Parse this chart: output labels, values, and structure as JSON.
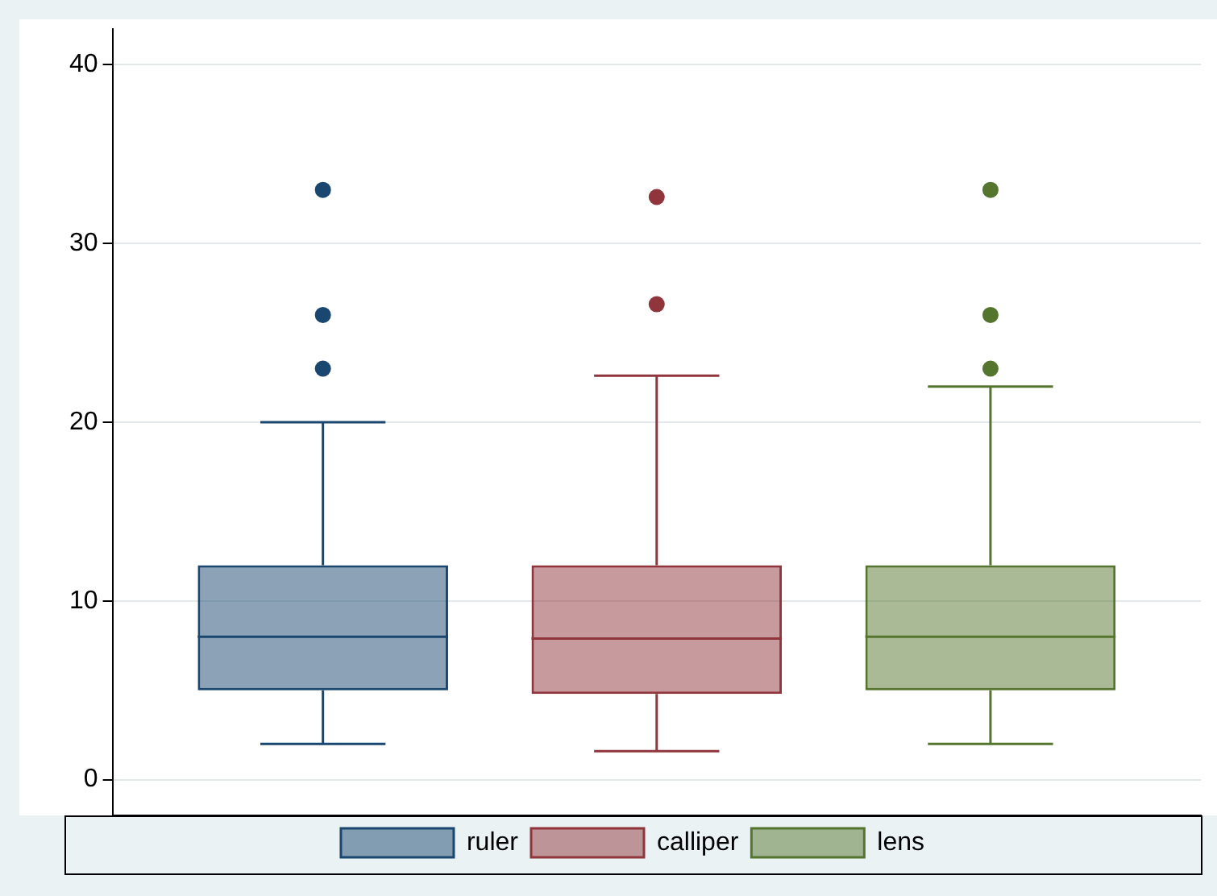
{
  "chart_data": {
    "type": "box",
    "categories": [
      null
    ],
    "series": [
      {
        "name": "ruler",
        "color": "#1a476f",
        "boxes": [
          {
            "low": 2,
            "q1": 5,
            "median": 8,
            "q3": 12,
            "high": 20,
            "outliers": [
              23,
              26,
              33
            ]
          }
        ]
      },
      {
        "name": "calliper",
        "color": "#90353b",
        "boxes": [
          {
            "low": 1.6,
            "q1": 4.8,
            "median": 7.9,
            "q3": 12,
            "high": 22.6,
            "outliers": [
              26.6,
              32.6
            ]
          }
        ]
      },
      {
        "name": "lens",
        "color": "#55752f",
        "boxes": [
          {
            "low": 2,
            "q1": 5,
            "median": 8,
            "q3": 12,
            "high": 22,
            "outliers": [
              23,
              26,
              33
            ]
          }
        ]
      }
    ],
    "ylim": [
      -2,
      42
    ],
    "yticks": [
      0,
      10,
      20,
      30,
      40
    ],
    "grid": "y",
    "legend": "bottom",
    "tick_labels": "y"
  }
}
